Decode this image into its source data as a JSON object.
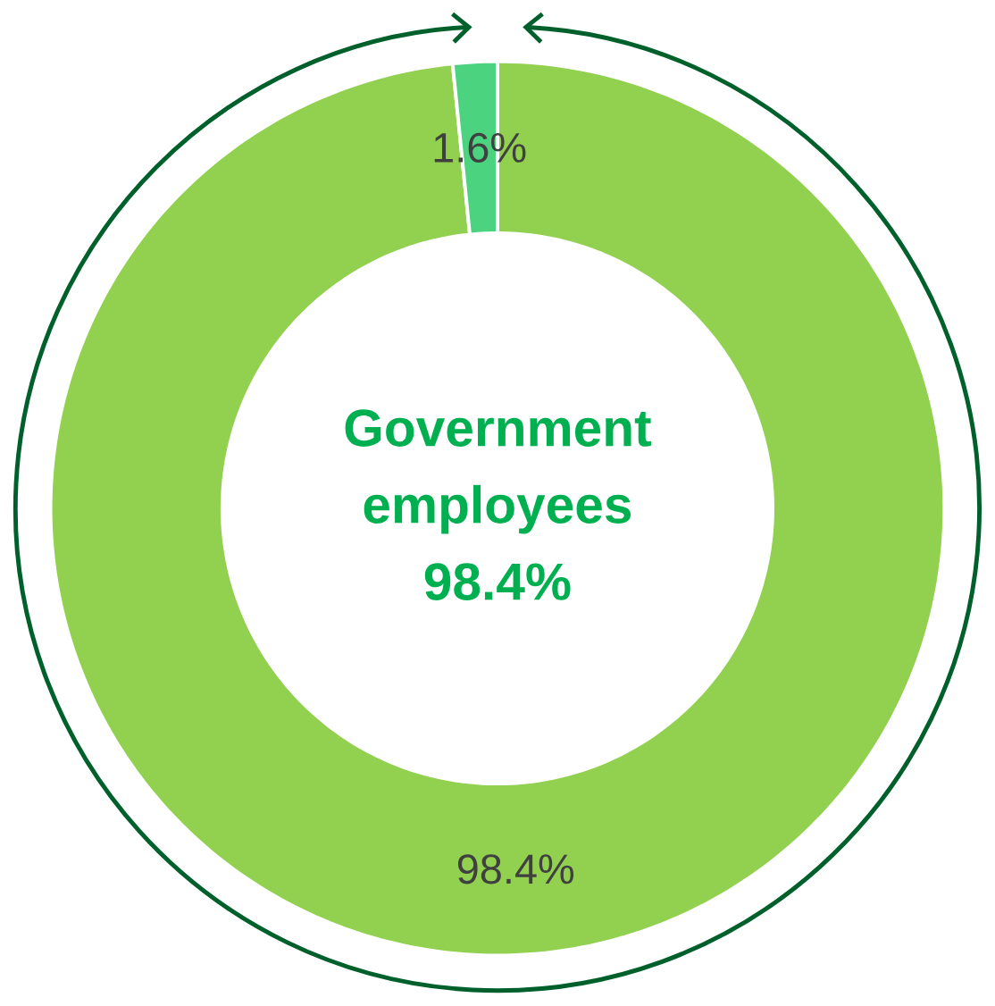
{
  "chart_data": {
    "type": "donut",
    "categories": [
      null,
      null
    ],
    "values": [
      98.4,
      1.6
    ],
    "colors": [
      "#92d050",
      "#4cd37f"
    ],
    "value_labels": [
      "98.4%",
      "1.6%"
    ],
    "annotations": [
      "Government employees 98.4%"
    ]
  }
}
